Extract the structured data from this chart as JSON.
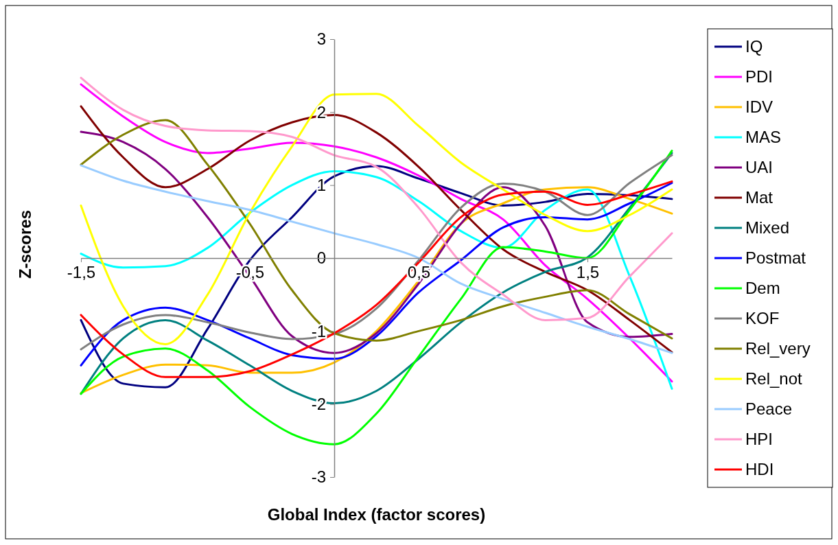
{
  "chart_data": {
    "type": "line",
    "xlabel": "Global Index (factor scores)",
    "ylabel": "Z-scores",
    "x": [
      -1.5,
      -1.25,
      -1,
      -0.75,
      -0.5,
      -0.25,
      0,
      0.25,
      0.5,
      0.75,
      1,
      1.25,
      1.5,
      1.75,
      2
    ],
    "xlim": [
      -1.5,
      2
    ],
    "ylim": [
      -3,
      3
    ],
    "xticks": [
      {
        "value": -1.5,
        "label": "-1,5"
      },
      {
        "value": -0.5,
        "label": "-0,5"
      },
      {
        "value": 0.5,
        "label": "0,5"
      },
      {
        "value": 1.5,
        "label": "1,5"
      }
    ],
    "yticks": [
      -3,
      -2,
      -1,
      0,
      1,
      2,
      3
    ],
    "grid": false,
    "legend": "right",
    "marker": "none",
    "line_style": "solid",
    "series": [
      {
        "name": "IQ",
        "color": "#000080",
        "values": [
          -0.85,
          -1.72,
          -1.77,
          -0.97,
          -0.03,
          0.56,
          1.12,
          1.26,
          1.09,
          0.89,
          0.72,
          0.77,
          0.88,
          0.86,
          0.81
        ]
      },
      {
        "name": "PDI",
        "color": "#ff00ff",
        "values": [
          2.38,
          1.94,
          1.59,
          1.44,
          1.5,
          1.58,
          1.53,
          1.38,
          1.13,
          0.81,
          0.53,
          -0.1,
          -0.56,
          -1.1,
          -1.69
        ]
      },
      {
        "name": "IDV",
        "color": "#ffc000",
        "values": [
          -1.85,
          -1.6,
          -1.46,
          -1.47,
          -1.57,
          -1.57,
          -1.43,
          -1.0,
          -0.31,
          0.47,
          0.75,
          0.94,
          0.97,
          0.81,
          0.61
        ]
      },
      {
        "name": "MAS",
        "color": "#00ffff",
        "values": [
          0.06,
          -0.13,
          -0.11,
          0.14,
          0.62,
          1.0,
          1.19,
          1.11,
          0.78,
          0.37,
          0.14,
          0.66,
          0.94,
          -0.25,
          -1.79
        ]
      },
      {
        "name": "UAI",
        "color": "#800080",
        "values": [
          1.73,
          1.59,
          1.22,
          0.56,
          -0.25,
          -1.07,
          -1.3,
          -1.03,
          -0.35,
          0.47,
          0.97,
          0.44,
          -0.88,
          -1.08,
          -1.04
        ]
      },
      {
        "name": "Mat",
        "color": "#800000",
        "values": [
          2.08,
          1.38,
          0.97,
          1.22,
          1.61,
          1.86,
          1.96,
          1.72,
          1.25,
          0.66,
          0.12,
          -0.19,
          -0.44,
          -0.85,
          -1.29
        ]
      },
      {
        "name": "Mixed",
        "color": "#008080",
        "values": [
          -1.86,
          -1.1,
          -0.85,
          -1.13,
          -1.47,
          -1.82,
          -1.99,
          -1.82,
          -1.38,
          -0.88,
          -0.47,
          -0.19,
          0.01,
          0.69,
          1.44
        ]
      },
      {
        "name": "Postmat",
        "color": "#0000ff",
        "values": [
          -1.47,
          -0.85,
          -0.68,
          -0.85,
          -1.1,
          -1.33,
          -1.38,
          -1.07,
          -0.47,
          -0.03,
          0.42,
          0.56,
          0.53,
          0.75,
          1.03
        ]
      },
      {
        "name": "Dem",
        "color": "#00ff00",
        "values": [
          -1.86,
          -1.35,
          -1.24,
          -1.54,
          -2.04,
          -2.41,
          -2.55,
          -2.13,
          -1.35,
          -0.56,
          0.15,
          0.09,
          0.0,
          0.66,
          1.47
        ]
      },
      {
        "name": "KOF",
        "color": "#808080",
        "values": [
          -1.25,
          -0.91,
          -0.78,
          -0.88,
          -1.02,
          -1.11,
          -1.04,
          -0.69,
          -0.03,
          0.69,
          1.02,
          0.91,
          0.59,
          1.03,
          1.41
        ]
      },
      {
        "name": "Rel_very",
        "color": "#808000",
        "values": [
          1.28,
          1.69,
          1.89,
          1.28,
          0.47,
          -0.44,
          -1.03,
          -1.13,
          -1.0,
          -0.85,
          -0.66,
          -0.53,
          -0.44,
          -0.77,
          -1.1
        ]
      },
      {
        "name": "Rel_not",
        "color": "#ffff00",
        "values": [
          0.72,
          -0.66,
          -1.18,
          -0.5,
          0.62,
          1.53,
          2.24,
          2.25,
          1.81,
          1.31,
          0.94,
          0.59,
          0.37,
          0.59,
          0.94
        ]
      },
      {
        "name": "Peace",
        "color": "#99ccff",
        "values": [
          1.27,
          1.06,
          0.91,
          0.78,
          0.66,
          0.5,
          0.34,
          0.19,
          0.0,
          -0.35,
          -0.56,
          -0.75,
          -0.94,
          -1.11,
          -1.3
        ]
      },
      {
        "name": "HPI",
        "color": "#ff99cc",
        "values": [
          2.47,
          2.03,
          1.81,
          1.75,
          1.74,
          1.66,
          1.41,
          1.25,
          0.69,
          -0.06,
          -0.5,
          -0.85,
          -0.82,
          -0.25,
          0.34
        ]
      },
      {
        "name": "HDI",
        "color": "#ff0000",
        "values": [
          -0.78,
          -1.32,
          -1.63,
          -1.63,
          -1.55,
          -1.32,
          -1.03,
          -0.64,
          -0.06,
          0.56,
          0.87,
          0.91,
          0.73,
          0.87,
          1.05
        ]
      }
    ]
  }
}
